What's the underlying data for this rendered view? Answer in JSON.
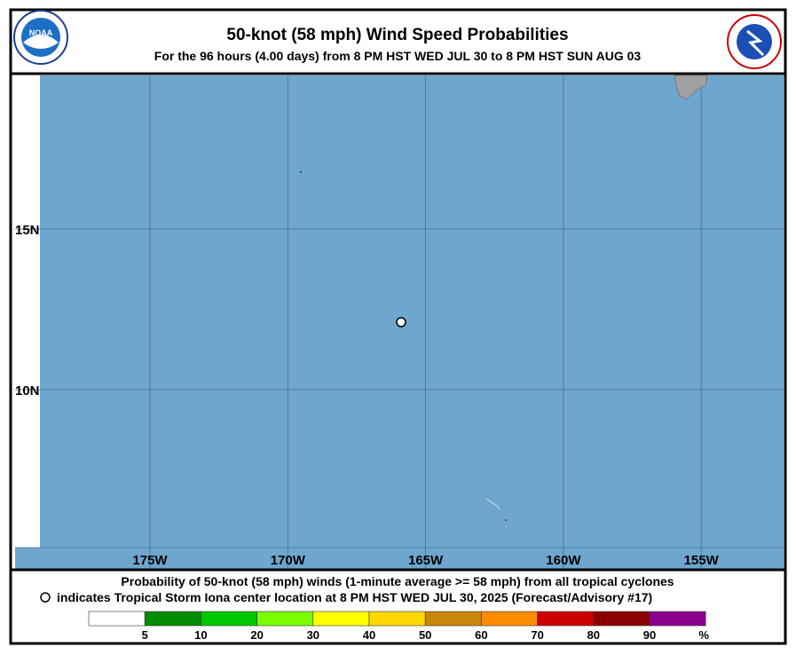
{
  "header": {
    "title": "50-knot (58 mph) Wind Speed Probabilities",
    "subtitle": "For the  96 hours (4.00 days) from 8 PM HST WED JUL 30 to 8 PM HST SUN AUG 03"
  },
  "map": {
    "lon_labels": [
      "175W",
      "170W",
      "165W",
      "160W",
      "155W"
    ],
    "lat_labels": [
      "15N",
      "10N"
    ]
  },
  "footer": {
    "line1": "Probability of 50-knot (58 mph) winds (1-minute average >= 58 mph) from all tropical cyclones",
    "line2": "indicates Tropical Storm Iona center location at 8 PM HST WED JUL 30, 2025 (Forecast/Advisory #17)"
  },
  "legend": {
    "colors": [
      "#ffffff",
      "#008c00",
      "#00c800",
      "#7cfc00",
      "#ffff00",
      "#ffd700",
      "#c8860a",
      "#ff8c00",
      "#cc0000",
      "#8b0000",
      "#8b008b"
    ],
    "ticks": [
      5,
      10,
      20,
      30,
      40,
      50,
      60,
      70,
      80,
      90
    ],
    "unit": "%"
  }
}
